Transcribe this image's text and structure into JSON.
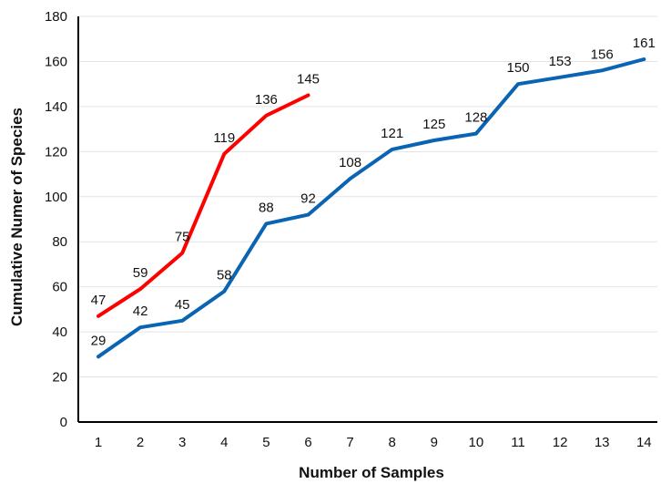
{
  "chart_data": {
    "type": "line",
    "title": "",
    "xlabel": "Number of Samples",
    "ylabel": "Cumulative Numer of Species",
    "ylim": [
      0,
      180
    ],
    "yticks": [
      0,
      20,
      40,
      60,
      80,
      100,
      120,
      140,
      160,
      180
    ],
    "xlim": [
      1,
      14
    ],
    "xticks": [
      1,
      2,
      3,
      4,
      5,
      6,
      7,
      8,
      9,
      10,
      11,
      12,
      13,
      14
    ],
    "grid": true,
    "series": [
      {
        "color": "#ff0000",
        "x": [
          1,
          2,
          3,
          4,
          5,
          6
        ],
        "values": [
          47,
          59,
          75,
          119,
          136,
          145
        ]
      },
      {
        "color": "#0a64b4",
        "x": [
          1,
          2,
          3,
          4,
          5,
          6,
          7,
          8,
          9,
          10,
          11,
          12,
          13,
          14
        ],
        "values": [
          29,
          42,
          45,
          58,
          88,
          92,
          108,
          121,
          125,
          128,
          150,
          153,
          156,
          161
        ]
      }
    ]
  }
}
